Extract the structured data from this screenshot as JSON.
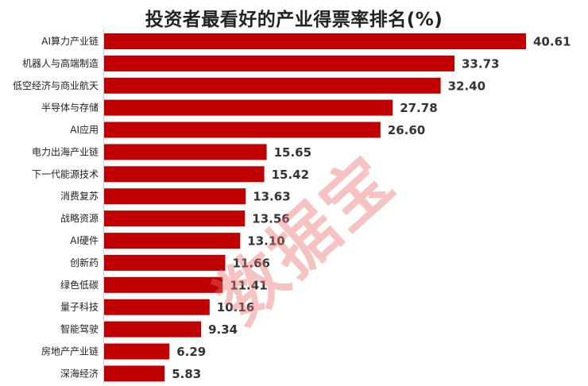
{
  "chart_data": {
    "type": "bar",
    "orientation": "horizontal",
    "title": "投资者最看好的产业得票率排名(%)",
    "categories": [
      "AI算力产业链",
      "机器人与高端制造",
      "低空经济与商业航天",
      "半导体与存储",
      "AI应用",
      "电力出海产业链",
      "下一代能源技术",
      "消费复苏",
      "战略资源",
      "AI硬件",
      "创新药",
      "绿色低碳",
      "量子科技",
      "智能驾驶",
      "房地产产业链",
      "深海经济"
    ],
    "values": [
      40.61,
      33.73,
      32.4,
      27.78,
      26.6,
      15.65,
      15.42,
      13.63,
      13.56,
      13.1,
      11.66,
      11.41,
      10.16,
      9.34,
      6.29,
      5.83
    ],
    "value_labels": [
      "40.61",
      "33.73",
      "32.40",
      "27.78",
      "26.60",
      "15.65",
      "15.42",
      "13.63",
      "13.56",
      "13.10",
      "11.66",
      "11.41",
      "10.16",
      "9.34",
      "6.29",
      "5.83"
    ],
    "xlim": [
      0,
      40.61
    ],
    "bar_color": "#c00000",
    "grid": false,
    "legend": "none"
  },
  "watermark": "数据宝"
}
